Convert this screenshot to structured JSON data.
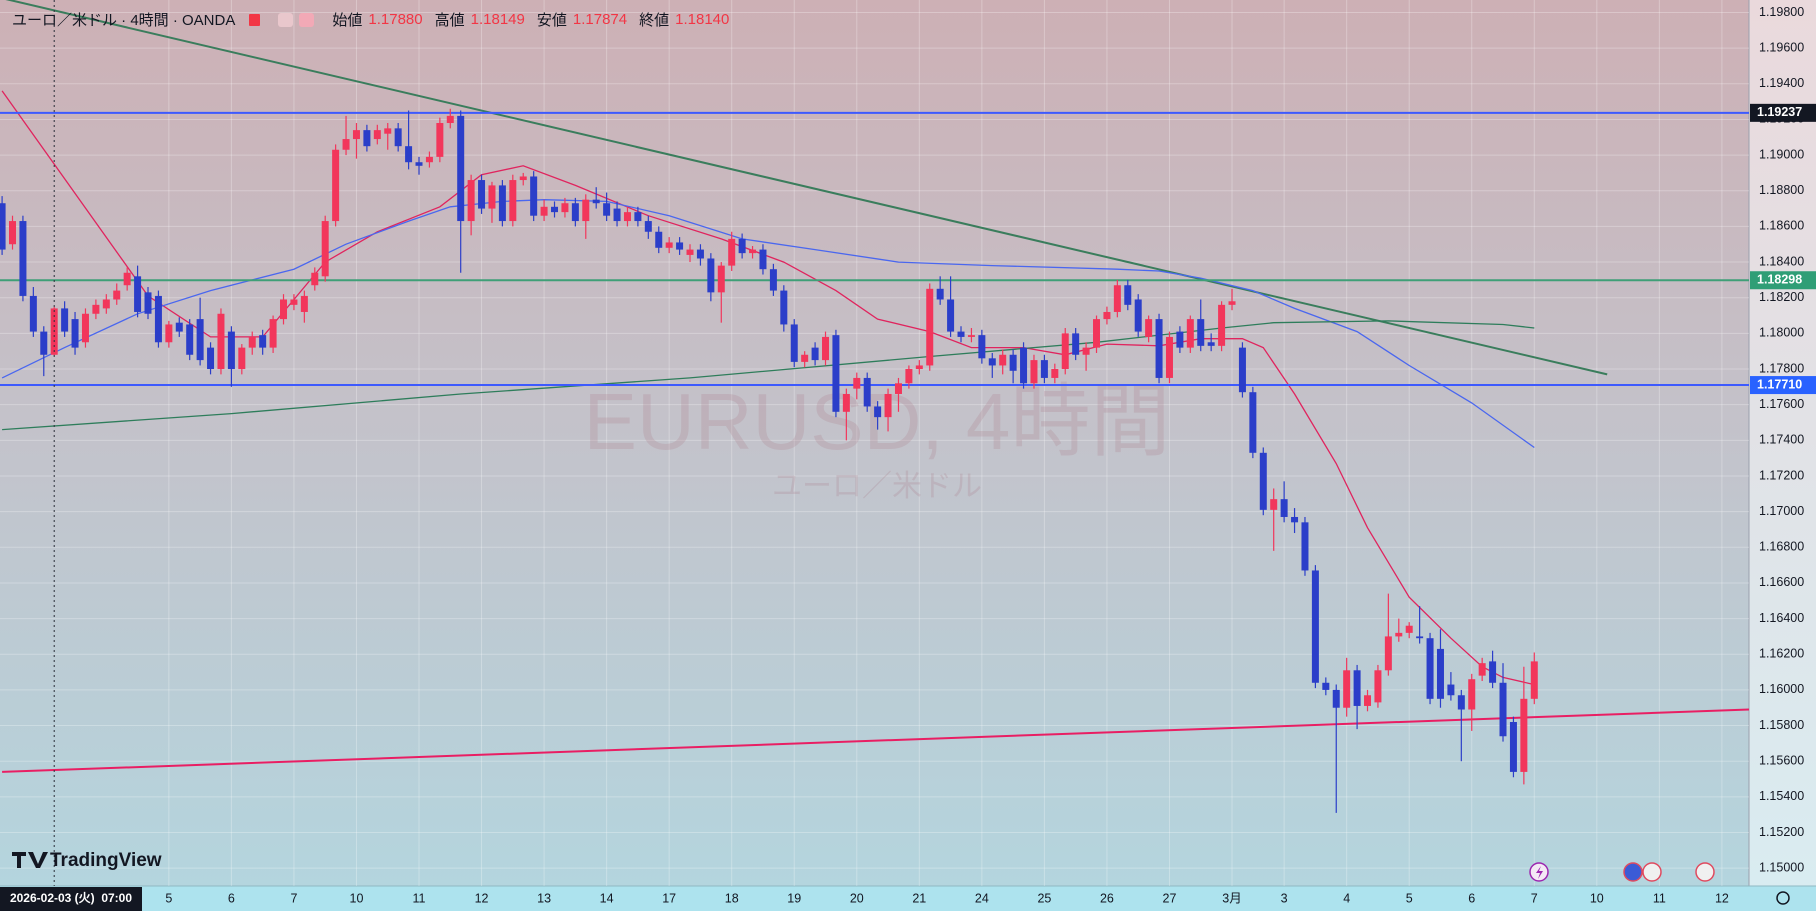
{
  "header": {
    "symbol": "ユーロ／米ドル · 4時間 · OANDA",
    "ohlc": [
      {
        "label": "始値",
        "value": "1.17880"
      },
      {
        "label": "高値",
        "value": "1.18149"
      },
      {
        "label": "安値",
        "value": "1.17874"
      },
      {
        "label": "終値",
        "value": "1.18140"
      }
    ]
  },
  "watermark": {
    "title": "EURUSD, 4時間",
    "subtitle": "ユーロ／米ドル"
  },
  "logo": "TradingView",
  "chart_data": {
    "type": "candlestick",
    "up_color": "#f2365b",
    "down_color": "#2b3ec9",
    "open": [
      1.1873,
      1.185,
      1.1863,
      1.1821,
      1.1801,
      1.1788,
      1.1814,
      1.1808,
      1.1795,
      1.1811,
      1.1814,
      1.1819,
      1.1827,
      1.1832,
      1.1823,
      1.1821,
      1.1795,
      1.1806,
      1.1805,
      1.1808,
      1.1792,
      1.178,
      1.1801,
      1.178,
      1.1792,
      1.1799,
      1.1792,
      1.1808,
      1.1816,
      1.1812,
      1.1827,
      1.1832,
      1.1863,
      1.1903,
      1.1909,
      1.1914,
      1.1909,
      1.1912,
      1.1915,
      1.1905,
      1.1896,
      1.1896,
      1.1899,
      1.1918,
      1.1922,
      1.1863,
      1.1886,
      1.187,
      1.1883,
      1.1863,
      1.1886,
      1.1888,
      1.1866,
      1.1871,
      1.1868,
      1.1873,
      1.1863,
      1.1875,
      1.1873,
      1.187,
      1.1863,
      1.1868,
      1.1863,
      1.1857,
      1.1848,
      1.1851,
      1.1844,
      1.1847,
      1.1842,
      1.1823,
      1.1838,
      1.1853,
      1.1845,
      1.1847,
      1.1836,
      1.1824,
      1.1805,
      1.1784,
      1.1792,
      1.1785,
      1.1799,
      1.1756,
      1.1769,
      1.1775,
      1.1759,
      1.1753,
      1.1766,
      1.1772,
      1.178,
      1.1782,
      1.1825,
      1.1819,
      1.1801,
      1.1798,
      1.1799,
      1.1786,
      1.1782,
      1.1788,
      1.1792,
      1.1772,
      1.1785,
      1.1775,
      1.178,
      1.18,
      1.1788,
      1.1792,
      1.1808,
      1.1812,
      1.1827,
      1.1819,
      1.1798,
      1.1808,
      1.1775,
      1.1801,
      1.1792,
      1.1808,
      1.1795,
      1.1793,
      1.1816,
      1.1792,
      1.1767,
      1.1733,
      1.1701,
      1.1707,
      1.1697,
      1.1694,
      1.1667,
      1.1604,
      1.16,
      1.159,
      1.1611,
      1.1591,
      1.1593,
      1.1611,
      1.163,
      1.1632,
      1.163,
      1.1629,
      1.1623,
      1.1603,
      1.1597,
      1.1589,
      1.1608,
      1.1616,
      1.1604,
      1.1582,
      1.1554,
      1.1595
    ],
    "high": [
      1.1877,
      1.1866,
      1.1866,
      1.1826,
      1.1804,
      1.18149,
      1.1818,
      1.1812,
      1.1814,
      1.1819,
      1.1822,
      1.1828,
      1.1837,
      1.1838,
      1.1826,
      1.1824,
      1.1807,
      1.1809,
      1.1808,
      1.182,
      1.1795,
      1.1814,
      1.1804,
      1.1794,
      1.1801,
      1.1802,
      1.181,
      1.1822,
      1.1822,
      1.1824,
      1.1837,
      1.1866,
      1.1906,
      1.1922,
      1.1918,
      1.1917,
      1.1917,
      1.1918,
      1.1918,
      1.1925,
      1.1899,
      1.1902,
      1.1921,
      1.1926,
      1.1925,
      1.1889,
      1.1889,
      1.1885,
      1.1886,
      1.1889,
      1.189,
      1.1891,
      1.1875,
      1.1874,
      1.1876,
      1.1876,
      1.1878,
      1.1882,
      1.1879,
      1.1874,
      1.1871,
      1.1871,
      1.1866,
      1.186,
      1.1854,
      1.1854,
      1.185,
      1.185,
      1.1845,
      1.184,
      1.1857,
      1.1856,
      1.1849,
      1.185,
      1.1839,
      1.1827,
      1.1808,
      1.179,
      1.1795,
      1.1801,
      1.1802,
      1.1769,
      1.1778,
      1.1778,
      1.1762,
      1.1769,
      1.1775,
      1.1782,
      1.1785,
      1.1828,
      1.1832,
      1.1832,
      1.1804,
      1.1803,
      1.1802,
      1.1789,
      1.1791,
      1.1791,
      1.1795,
      1.1788,
      1.1788,
      1.1783,
      1.1803,
      1.1803,
      1.1795,
      1.181,
      1.1815,
      1.183,
      1.183,
      1.1822,
      1.181,
      1.1811,
      1.1801,
      1.1804,
      1.181,
      1.1819,
      1.18,
      1.1818,
      1.1825,
      1.1795,
      1.177,
      1.1736,
      1.1713,
      1.1717,
      1.1702,
      1.1697,
      1.167,
      1.1607,
      1.1603,
      1.1618,
      1.1614,
      1.16,
      1.1614,
      1.1654,
      1.164,
      1.1638,
      1.1647,
      1.1632,
      1.1634,
      1.161,
      1.16,
      1.1609,
      1.1618,
      1.1622,
      1.1615,
      1.1585,
      1.1613,
      1.1621
    ],
    "low": [
      1.1844,
      1.1847,
      1.1818,
      1.1798,
      1.1776,
      1.17874,
      1.1798,
      1.1788,
      1.1792,
      1.1808,
      1.1811,
      1.1816,
      1.1824,
      1.1809,
      1.1808,
      1.1792,
      1.1792,
      1.1798,
      1.1785,
      1.1782,
      1.1777,
      1.1777,
      1.177,
      1.1777,
      1.1788,
      1.1788,
      1.1789,
      1.1805,
      1.1813,
      1.1806,
      1.1824,
      1.1829,
      1.186,
      1.19,
      1.1898,
      1.1902,
      1.1906,
      1.1903,
      1.1902,
      1.1892,
      1.1889,
      1.1893,
      1.1896,
      1.1915,
      1.1834,
      1.1855,
      1.1867,
      1.1862,
      1.186,
      1.186,
      1.1883,
      1.1863,
      1.1863,
      1.1865,
      1.1865,
      1.186,
      1.1853,
      1.187,
      1.1863,
      1.186,
      1.186,
      1.186,
      1.1853,
      1.1845,
      1.1845,
      1.1844,
      1.184,
      1.1838,
      1.1818,
      1.1806,
      1.1835,
      1.1842,
      1.1842,
      1.1833,
      1.1821,
      1.1801,
      1.1781,
      1.1781,
      1.1782,
      1.1782,
      1.1753,
      1.174,
      1.1763,
      1.1756,
      1.1746,
      1.1745,
      1.1756,
      1.1769,
      1.1777,
      1.1779,
      1.1816,
      1.1798,
      1.1795,
      1.1795,
      1.1783,
      1.1775,
      1.1777,
      1.1772,
      1.1769,
      1.1769,
      1.1772,
      1.1772,
      1.1777,
      1.1785,
      1.1779,
      1.1789,
      1.1805,
      1.1809,
      1.1813,
      1.1798,
      1.1795,
      1.1772,
      1.1772,
      1.1789,
      1.1789,
      1.179,
      1.179,
      1.179,
      1.1813,
      1.1764,
      1.173,
      1.1698,
      1.1678,
      1.1694,
      1.1688,
      1.1664,
      1.1601,
      1.1597,
      1.1531,
      1.1585,
      1.1578,
      1.1588,
      1.159,
      1.1608,
      1.1627,
      1.1629,
      1.1626,
      1.1592,
      1.159,
      1.1594,
      1.156,
      1.1577,
      1.1605,
      1.1601,
      1.1571,
      1.1551,
      1.1547,
      1.1592
    ],
    "close": [
      1.1847,
      1.1863,
      1.1821,
      1.1801,
      1.1788,
      1.1814,
      1.1801,
      1.1792,
      1.1811,
      1.1816,
      1.1819,
      1.1824,
      1.1834,
      1.1812,
      1.1811,
      1.1795,
      1.1805,
      1.1801,
      1.1788,
      1.1785,
      1.178,
      1.1811,
      1.178,
      1.1792,
      1.1798,
      1.1792,
      1.1808,
      1.1819,
      1.1819,
      1.1821,
      1.1834,
      1.1863,
      1.1903,
      1.1909,
      1.1914,
      1.1905,
      1.1914,
      1.1915,
      1.1905,
      1.1896,
      1.1894,
      1.1899,
      1.1918,
      1.1922,
      1.1863,
      1.1886,
      1.187,
      1.1883,
      1.1863,
      1.1886,
      1.1888,
      1.1866,
      1.1871,
      1.1868,
      1.1873,
      1.1863,
      1.1875,
      1.1873,
      1.1866,
      1.1863,
      1.1868,
      1.1863,
      1.1857,
      1.1848,
      1.1851,
      1.1847,
      1.1847,
      1.1842,
      1.1823,
      1.1838,
      1.1853,
      1.1845,
      1.1847,
      1.1836,
      1.1824,
      1.1805,
      1.1784,
      1.1788,
      1.1785,
      1.1798,
      1.1756,
      1.1766,
      1.1775,
      1.1759,
      1.1753,
      1.1766,
      1.1772,
      1.178,
      1.1782,
      1.1825,
      1.1819,
      1.1801,
      1.1798,
      1.1799,
      1.1786,
      1.1782,
      1.1788,
      1.1779,
      1.1772,
      1.1785,
      1.1775,
      1.178,
      1.18,
      1.1788,
      1.1792,
      1.1808,
      1.1812,
      1.1827,
      1.1816,
      1.1801,
      1.1808,
      1.1775,
      1.1798,
      1.1792,
      1.1808,
      1.1793,
      1.1793,
      1.1816,
      1.1818,
      1.1767,
      1.1733,
      1.1701,
      1.1707,
      1.1697,
      1.1694,
      1.1667,
      1.1604,
      1.16,
      1.159,
      1.1611,
      1.1591,
      1.1597,
      1.1611,
      1.163,
      1.1632,
      1.1636,
      1.1629,
      1.1595,
      1.1595,
      1.1597,
      1.1589,
      1.1606,
      1.1615,
      1.1604,
      1.1574,
      1.1554,
      1.1595,
      1.1616
    ],
    "xlim": [
      -0.2,
      167.6
    ],
    "ylim": [
      1.149,
      1.1987
    ],
    "xticks": [
      {
        "value": 16,
        "label": "5"
      },
      {
        "value": 22,
        "label": "6"
      },
      {
        "value": 28,
        "label": "7"
      },
      {
        "value": 34,
        "label": "10"
      },
      {
        "value": 40,
        "label": "11"
      },
      {
        "value": 46,
        "label": "12"
      },
      {
        "value": 52,
        "label": "13"
      },
      {
        "value": 58,
        "label": "14"
      },
      {
        "value": 64,
        "label": "17"
      },
      {
        "value": 70,
        "label": "18"
      },
      {
        "value": 76,
        "label": "19"
      },
      {
        "value": 82,
        "label": "20"
      },
      {
        "value": 88,
        "label": "21"
      },
      {
        "value": 94,
        "label": "24"
      },
      {
        "value": 100,
        "label": "25"
      },
      {
        "value": 106,
        "label": "26"
      },
      {
        "value": 112,
        "label": "27"
      },
      {
        "value": 118,
        "label": "3月"
      },
      {
        "value": 123,
        "label": "3"
      },
      {
        "value": 129,
        "label": "4"
      },
      {
        "value": 135,
        "label": "5"
      },
      {
        "value": 141,
        "label": "6"
      },
      {
        "value": 147,
        "label": "7"
      },
      {
        "value": 153,
        "label": "10"
      },
      {
        "value": 159,
        "label": "11"
      },
      {
        "value": 165,
        "label": "12"
      }
    ],
    "yticks": [
      {
        "value": 1.15,
        "label": "1.15000"
      },
      {
        "value": 1.152,
        "label": "1.15200"
      },
      {
        "value": 1.154,
        "label": "1.15400"
      },
      {
        "value": 1.156,
        "label": "1.15600"
      },
      {
        "value": 1.158,
        "label": "1.15800"
      },
      {
        "value": 1.16,
        "label": "1.16000"
      },
      {
        "value": 1.162,
        "label": "1.16200"
      },
      {
        "value": 1.164,
        "label": "1.16400"
      },
      {
        "value": 1.166,
        "label": "1.16600"
      },
      {
        "value": 1.168,
        "label": "1.16800"
      },
      {
        "value": 1.17,
        "label": "1.17000"
      },
      {
        "value": 1.172,
        "label": "1.17200"
      },
      {
        "value": 1.174,
        "label": "1.17400"
      },
      {
        "value": 1.176,
        "label": "1.17600"
      },
      {
        "value": 1.178,
        "label": "1.17800"
      },
      {
        "value": 1.18,
        "label": "1.18000"
      },
      {
        "value": 1.182,
        "label": "1.18200"
      },
      {
        "value": 1.184,
        "label": "1.18400"
      },
      {
        "value": 1.186,
        "label": "1.18600"
      },
      {
        "value": 1.188,
        "label": "1.18800"
      },
      {
        "value": 1.19,
        "label": "1.19000"
      },
      {
        "value": 1.192,
        "label": "1.19200"
      },
      {
        "value": 1.194,
        "label": "1.19400"
      },
      {
        "value": 1.196,
        "label": "1.19600"
      },
      {
        "value": 1.198,
        "label": "1.19800"
      }
    ],
    "grid": true,
    "moving_averages": [
      {
        "color": "#e0245e",
        "x": [
          0,
          14,
          20,
          25,
          31,
          36,
          42,
          46,
          50,
          55,
          62,
          69,
          75,
          80,
          84,
          89,
          93,
          98,
          102,
          106,
          111,
          115,
          119,
          121,
          124,
          128,
          131,
          135,
          139,
          142,
          144,
          147
        ],
        "values": [
          1.1936,
          1.1821,
          1.1798,
          1.1798,
          1.184,
          1.1857,
          1.1871,
          1.1889,
          1.1894,
          1.1883,
          1.1866,
          1.1853,
          1.184,
          1.1824,
          1.1808,
          1.1801,
          1.1792,
          1.1792,
          1.1788,
          1.1794,
          1.1793,
          1.1797,
          1.1797,
          1.1792,
          1.1766,
          1.1727,
          1.1691,
          1.1652,
          1.1629,
          1.1613,
          1.1607,
          1.1603
        ]
      },
      {
        "color": "#4a67ef",
        "x": [
          0,
          6,
          13,
          20,
          28,
          33,
          39,
          43,
          48,
          52,
          58,
          64,
          71,
          78,
          86,
          95,
          107,
          111,
          115,
          120,
          124,
          130,
          135,
          141,
          147
        ],
        "values": [
          1.1775,
          1.1792,
          1.1811,
          1.1824,
          1.1836,
          1.185,
          1.1863,
          1.1871,
          1.1874,
          1.1875,
          1.1874,
          1.1866,
          1.1853,
          1.1847,
          1.184,
          1.1838,
          1.1836,
          1.1835,
          1.1831,
          1.1824,
          1.1814,
          1.1801,
          1.1782,
          1.1761,
          1.1736
        ]
      },
      {
        "color": "#2e7d5b",
        "x": [
          0,
          22,
          44,
          66,
          89,
          105,
          117,
          122,
          133,
          144,
          147
        ],
        "values": [
          1.1746,
          1.1755,
          1.1766,
          1.1775,
          1.1787,
          1.1795,
          1.1803,
          1.1806,
          1.1807,
          1.1805,
          1.1803
        ]
      }
    ],
    "levels": [
      {
        "value": 1.19237,
        "label": "1.19237",
        "color": "#3d5afe",
        "tag_color": "#131722"
      },
      {
        "value": 1.18298,
        "label": "1.18298",
        "color": "#3f9f77",
        "tag_color": "#2f9e76"
      },
      {
        "value": 1.1771,
        "label": "1.17710",
        "color": "#3d5afe",
        "tag_color": "#2962ff"
      }
    ],
    "trendlines": [
      {
        "color": "#3a7d5c",
        "x": [
          0,
          154
        ],
        "values": [
          1.1988,
          1.1777
        ]
      },
      {
        "color": "#e91e63",
        "x": [
          0,
          167.6
        ],
        "values": [
          1.1554,
          1.1589
        ]
      }
    ],
    "crosshair": {
      "x": 5,
      "label": "2026-02-03 (火)  07:00"
    }
  }
}
